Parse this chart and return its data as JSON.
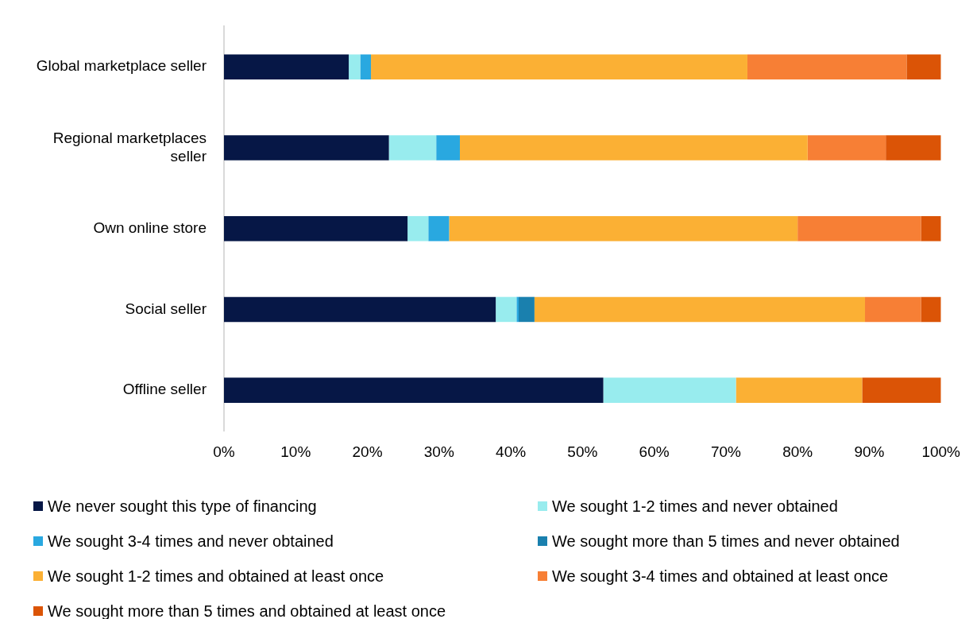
{
  "chart_data": {
    "type": "bar",
    "orientation": "horizontal",
    "stacked": true,
    "categories": [
      "Global marketplace seller",
      "Regional marketplaces seller",
      "Own online store",
      "Social seller",
      "Offline seller"
    ],
    "series": [
      {
        "name": "We never sought this type of financing",
        "color": "#061746",
        "values": [
          17.4,
          23.0,
          25.6,
          37.9,
          52.9
        ]
      },
      {
        "name": "We sought 1-2 times and never obtained",
        "color": "#98ecee",
        "values": [
          1.6,
          6.6,
          2.9,
          2.9,
          18.5
        ]
      },
      {
        "name": "We sought 3-4 times and never obtained",
        "color": "#29a8e0",
        "values": [
          1.5,
          3.3,
          2.9,
          0.3,
          0
        ]
      },
      {
        "name": "We sought more than 5 times and never obtained",
        "color": "#1a80ae",
        "values": [
          0,
          0,
          0,
          2.2,
          0
        ]
      },
      {
        "name": "We sought 1-2 times and obtained at least once",
        "color": "#fbb034",
        "values": [
          52.5,
          48.5,
          48.6,
          46.1,
          17.6
        ]
      },
      {
        "name": "We sought 3-4 times and obtained at least once",
        "color": "#f77f35",
        "values": [
          22.2,
          10.9,
          17.2,
          7.8,
          0
        ]
      },
      {
        "name": "We sought more than 5 times and obtained at least once",
        "color": "#db5406",
        "values": [
          4.8,
          7.7,
          2.8,
          2.8,
          11.0
        ]
      }
    ],
    "xlim": [
      0,
      100
    ],
    "xticks": [
      {
        "value": 0,
        "label": "0%"
      },
      {
        "value": 10,
        "label": "10%"
      },
      {
        "value": 20,
        "label": "20%"
      },
      {
        "value": 30,
        "label": "30%"
      },
      {
        "value": 40,
        "label": "40%"
      },
      {
        "value": 50,
        "label": "50%"
      },
      {
        "value": 60,
        "label": "60%"
      },
      {
        "value": 70,
        "label": "70%"
      },
      {
        "value": 80,
        "label": "80%"
      },
      {
        "value": 90,
        "label": "90%"
      },
      {
        "value": 100,
        "label": "100%"
      }
    ],
    "grid": false,
    "legend": "bottom"
  }
}
